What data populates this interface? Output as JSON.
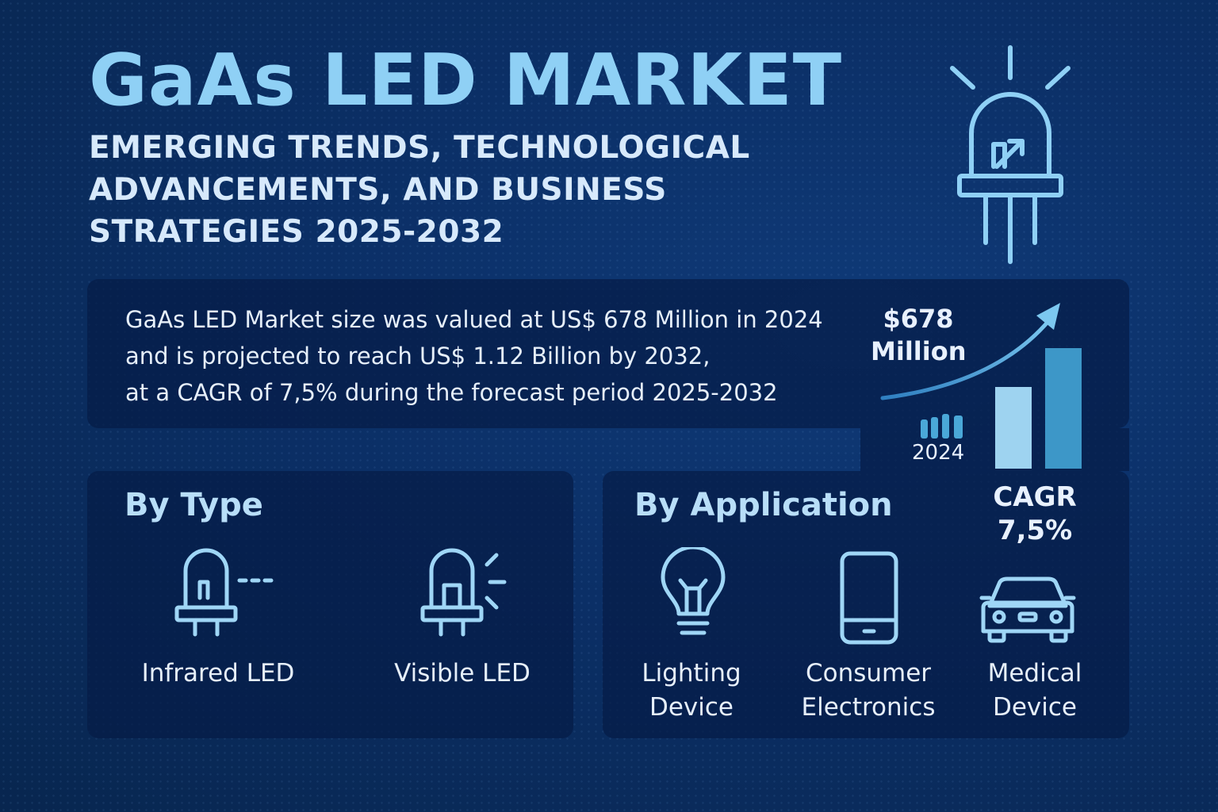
{
  "header": {
    "title": "GaAs LED MARKET",
    "subtitle_lines": [
      "EMERGING TRENDS, TECHNOLOGICAL",
      "ADVANCEMENTS, AND BUSINESS",
      "STRATEGIES 2025-2032"
    ]
  },
  "summary": {
    "lines": [
      "GaAs LED Market size was valued at US$ 678 Million in 2024",
      "and is projected to reach US$ 1.12 Billion by 2032,",
      "at a CAGR of 7,5% during the forecast period 2025-2032"
    ]
  },
  "highlight": {
    "value_lines": [
      "$678",
      "Million"
    ],
    "year": "2024",
    "cagr_lines": [
      "CAGR",
      "7,5%"
    ]
  },
  "by_type": {
    "title": "By Type",
    "items": [
      {
        "label": "Infrared LED",
        "icon": "infrared-led-icon"
      },
      {
        "label": "Visible LED",
        "icon": "visible-led-icon"
      }
    ]
  },
  "by_application": {
    "title": "By Application",
    "items": [
      {
        "lines": [
          "Lighting",
          "Device"
        ],
        "icon": "light-bulb-icon"
      },
      {
        "lines": [
          "Consumer",
          "Electronics"
        ],
        "icon": "smartphone-icon"
      },
      {
        "lines": [
          "Medical",
          "Device"
        ],
        "icon": "car-icon"
      }
    ]
  },
  "colors": {
    "background": "#0b2f66",
    "title": "#8fd0f5",
    "accent": "#5ab4e6",
    "icon_stroke": "#9fd6f6"
  }
}
